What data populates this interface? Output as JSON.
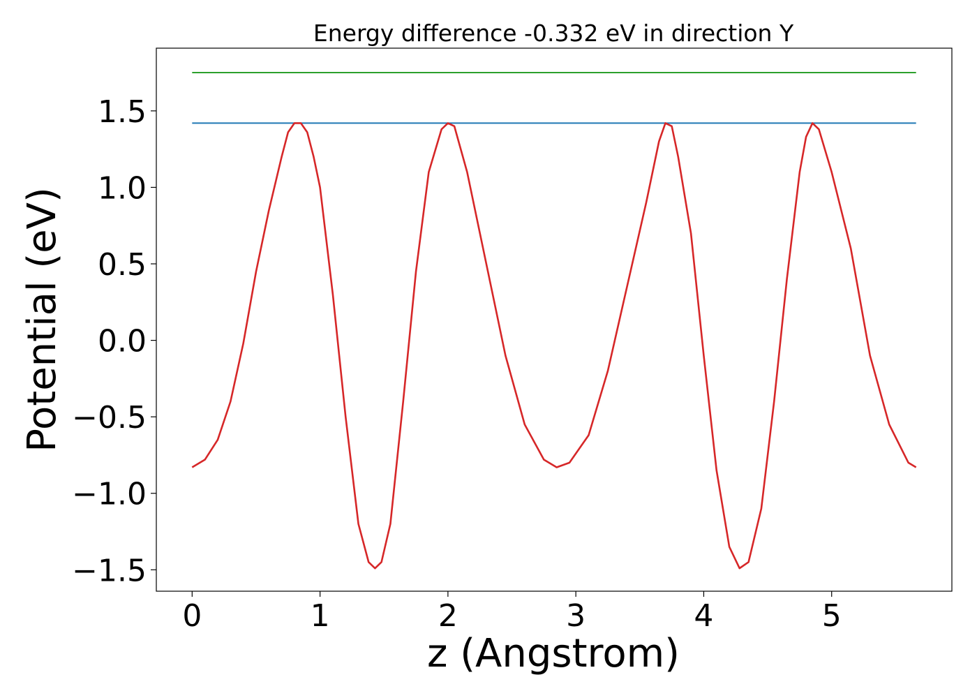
{
  "chart_data": {
    "type": "line",
    "title": "Energy difference -0.332 eV in direction Y",
    "xlabel": "z (Angstrom)",
    "ylabel": "Potential (eV)",
    "xlim": [
      -0.28,
      5.94
    ],
    "ylim": [
      -1.64,
      1.91
    ],
    "grid": false,
    "x_ticks": [
      0,
      1,
      2,
      3,
      4,
      5
    ],
    "x_tick_labels": [
      "0",
      "1",
      "2",
      "3",
      "4",
      "5"
    ],
    "y_ticks": [
      -1.5,
      -1.0,
      -0.5,
      0.0,
      0.5,
      1.0,
      1.5
    ],
    "y_tick_labels": [
      "−1.5",
      "−1.0",
      "−0.5",
      "0.0",
      "0.5",
      "1.0",
      "1.5"
    ],
    "series": [
      {
        "color": "#2ca02c",
        "x": [
          0.0,
          5.66
        ],
        "y": [
          1.75,
          1.75
        ]
      },
      {
        "color": "#1f77b4",
        "x": [
          0.0,
          5.66
        ],
        "y": [
          1.42,
          1.42
        ]
      },
      {
        "color": "#d62728",
        "x": [
          0.0,
          0.1,
          0.2,
          0.3,
          0.4,
          0.5,
          0.6,
          0.7,
          0.75,
          0.8,
          0.85,
          0.9,
          0.95,
          1.0,
          1.1,
          1.2,
          1.3,
          1.38,
          1.43,
          1.48,
          1.55,
          1.65,
          1.75,
          1.85,
          1.95,
          2.0,
          2.05,
          2.15,
          2.3,
          2.45,
          2.6,
          2.75,
          2.85,
          2.95,
          3.1,
          3.25,
          3.4,
          3.55,
          3.65,
          3.7,
          3.75,
          3.8,
          3.9,
          4.0,
          4.1,
          4.2,
          4.28,
          4.35,
          4.45,
          4.55,
          4.65,
          4.75,
          4.8,
          4.85,
          4.9,
          5.0,
          5.15,
          5.3,
          5.45,
          5.6,
          5.66
        ],
        "y": [
          -0.83,
          -0.78,
          -0.65,
          -0.4,
          -0.02,
          0.45,
          0.85,
          1.2,
          1.36,
          1.42,
          1.42,
          1.36,
          1.2,
          1.0,
          0.3,
          -0.5,
          -1.2,
          -1.45,
          -1.49,
          -1.45,
          -1.2,
          -0.4,
          0.45,
          1.1,
          1.38,
          1.42,
          1.4,
          1.1,
          0.5,
          -0.1,
          -0.55,
          -0.78,
          -0.83,
          -0.8,
          -0.62,
          -0.2,
          0.35,
          0.9,
          1.3,
          1.42,
          1.4,
          1.2,
          0.7,
          -0.1,
          -0.85,
          -1.35,
          -1.49,
          -1.45,
          -1.1,
          -0.4,
          0.4,
          1.1,
          1.33,
          1.42,
          1.38,
          1.1,
          0.6,
          -0.1,
          -0.55,
          -0.8,
          -0.83
        ]
      }
    ]
  }
}
